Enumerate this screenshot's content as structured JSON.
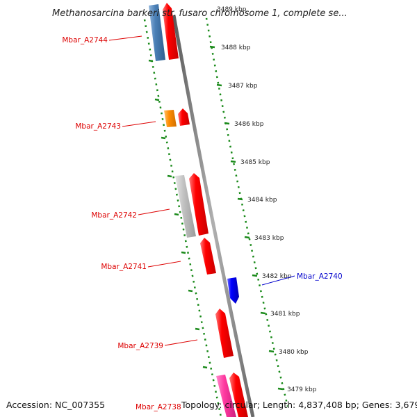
{
  "title": "Methanosarcina barkeri str. fusaro chromosome 1, complete se...",
  "top_partial_tick": "3489 kbp",
  "ticks": [
    "3488 kbp",
    "3487 kbp",
    "3486 kbp",
    "3485 kbp",
    "3484 kbp",
    "3483 kbp",
    "3482 kbp",
    "3481 kbp",
    "3480 kbp",
    "3479 kbp"
  ],
  "genes": [
    {
      "label": "Mbar_A2744",
      "color": "#dd0000"
    },
    {
      "label": "Mbar_A2743",
      "color": "#dd0000"
    },
    {
      "label": "Mbar_A2742",
      "color": "#dd0000"
    },
    {
      "label": "Mbar_A2741",
      "color": "#dd0000"
    },
    {
      "label": "Mbar_A2740",
      "color": "#0000cc"
    },
    {
      "label": "Mbar_A2739",
      "color": "#dd0000"
    },
    {
      "label": "Mbar_A2738",
      "color": "#dd0000"
    }
  ],
  "colors": {
    "forward_gene": "#ff0000",
    "reverse_gene": "#0000ff",
    "cog_blue": "#4a7fb5",
    "cog_orange": "#ff8c00",
    "cog_gray": "#bdbdbd",
    "cog_pink": "#ff3aa0",
    "backbone": "#8a8a8a",
    "dots": "#1a8a1a"
  },
  "footer": {
    "accession": "Accession: NC_007355",
    "topology": "Topology: circular; Length: 4,837,408 bp; Genes: 3,679"
  }
}
